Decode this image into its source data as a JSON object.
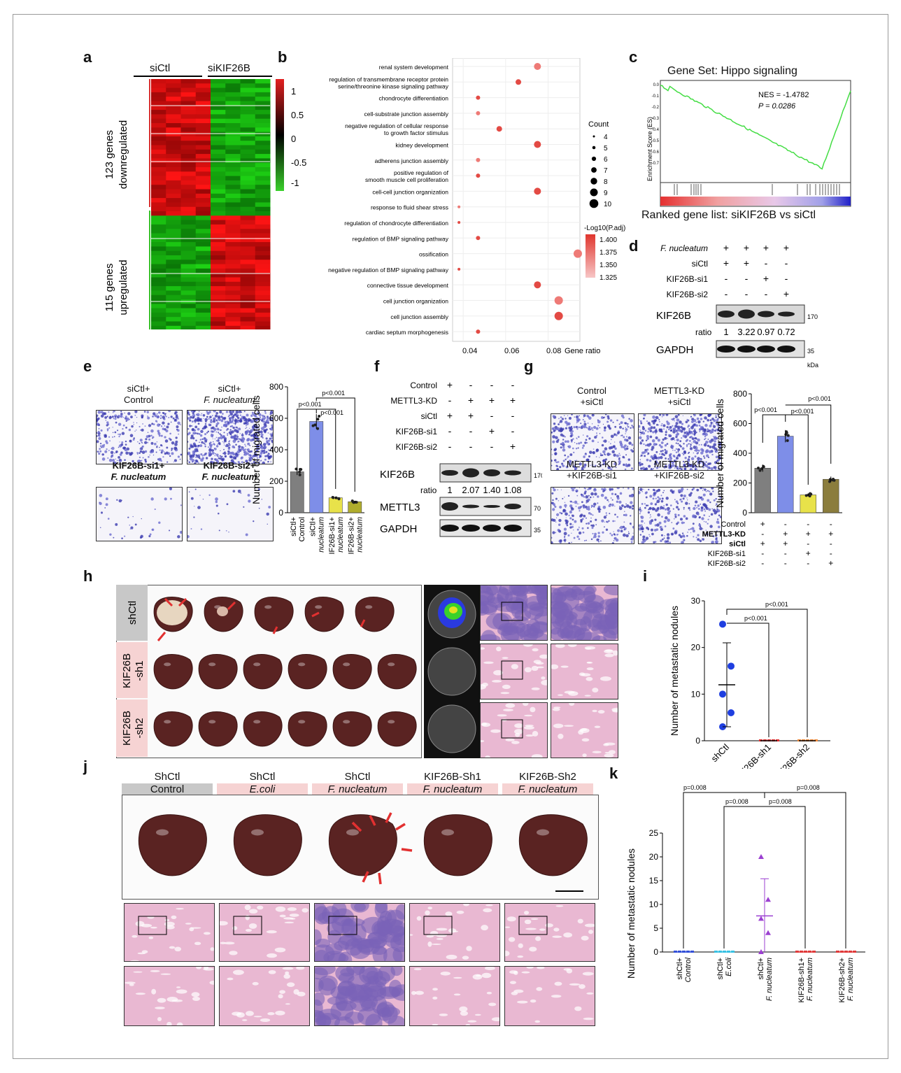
{
  "panels": {
    "a": "a",
    "b": "b",
    "c": "c",
    "d": "d",
    "e": "e",
    "f": "f",
    "g": "g",
    "h": "h",
    "i": "i",
    "j": "j",
    "k": "k"
  },
  "heatmap": {
    "col_labels": [
      "siCtl",
      "siKIF26B"
    ],
    "row_group_1": [
      "123 genes",
      "downregulated"
    ],
    "row_group_2": [
      "115 genes",
      "upregulated"
    ],
    "scale_ticks": [
      "1",
      "0.5",
      "0",
      "-0.5",
      "-1"
    ],
    "colors": {
      "high": "#e32020",
      "mid": "#000000",
      "low": "#39d12a"
    }
  },
  "go_dotplot": {
    "terms": [
      "renal system development",
      "regulation of transmembrane receptor protein",
      "serine/threonine kinase signaling pathway",
      "chondrocyte differentiation",
      "cell-substrate junction assembly",
      "negative regulation of cellular response",
      "to growth factor stimulus",
      "kidney development",
      "adherens junction assembly",
      "positive regulation of",
      "smooth muscle cell proliferation",
      "cell-cell junction organization",
      "response to fluid shear stress",
      "regulation of chondrocyte differentiation",
      "regulation of BMP signaling pathway",
      "ossification",
      "negative regulation of BMP signaling pathway",
      "connective tissue development",
      "cell junction organization",
      "cell junction assembly",
      "cardiac septum morphogenesis"
    ],
    "x_ticks": [
      "0.04",
      "0.06",
      "0.08"
    ],
    "x_label": "Gene ratio",
    "count_title": "Count",
    "count_values": [
      "4",
      "5",
      "6",
      "7",
      "8",
      "9",
      "10"
    ],
    "padj_title": "-Log10(P.adj)",
    "padj_ticks": [
      "1.400",
      "1.375",
      "1.350",
      "1.325"
    ]
  },
  "gsea": {
    "title": "Gene Set: Hippo signaling",
    "nes": "NES = -1.4782",
    "p": "P = 0.0286",
    "y_label": "Enrichment Score (ES)",
    "y_ticks": [
      "0.0",
      "-0.1",
      "-0.2",
      "-0.3",
      "-0.4",
      "-0.5",
      "-0.6",
      "-0.7"
    ],
    "ranked_label": "Ranked gene list: siKIF26B vs siCtl"
  },
  "western_d": {
    "rows": [
      {
        "label": "F. nucleatum",
        "marks": [
          "+",
          "+",
          "+",
          "+"
        ]
      },
      {
        "label": "siCtl",
        "marks": [
          "+",
          "+",
          "-",
          "-"
        ]
      },
      {
        "label": "KIF26B-si1",
        "marks": [
          "-",
          "-",
          "+",
          "-"
        ]
      },
      {
        "label": "KIF26B-si2",
        "marks": [
          "-",
          "-",
          "-",
          "+"
        ]
      }
    ],
    "band1": "KIF26B",
    "band2": "GAPDH",
    "ratio_label": "ratio",
    "ratios": [
      "1",
      "3.22",
      "0.97",
      "0.72"
    ],
    "mw1": "170",
    "mw2": "35",
    "kda": "kDa"
  },
  "migration_e": {
    "images": [
      [
        "siCtl+",
        "Control"
      ],
      [
        "siCtl+",
        "F. nucleatum"
      ],
      [
        "KIF26B-si1+",
        "F. nucleatum"
      ],
      [
        "KIF26B-si2+",
        "F. nucleatum"
      ]
    ],
    "y_label": "Number of migrated cells",
    "y_ticks": [
      "0",
      "200",
      "400",
      "600",
      "800"
    ],
    "p_labels": [
      "p<0.001",
      "p<0.001",
      "p<0.001"
    ],
    "categories": [
      [
        "siCtl+",
        "Control"
      ],
      [
        "siCtl+",
        "F. nucleatum"
      ],
      [
        "KIF26B-si1+",
        "F. nucleatum"
      ],
      [
        "KIF26B-si2+",
        "F. nucleatum"
      ]
    ]
  },
  "western_f": {
    "rows": [
      {
        "label": "Control",
        "marks": [
          "+",
          "-",
          "-",
          "-"
        ]
      },
      {
        "label": "METTL3-KD",
        "marks": [
          "-",
          "+",
          "+",
          "+"
        ]
      },
      {
        "label": "siCtl",
        "marks": [
          "+",
          "+",
          "-",
          "-"
        ]
      },
      {
        "label": "KIF26B-si1",
        "marks": [
          "-",
          "-",
          "+",
          "-"
        ]
      },
      {
        "label": "KIF26B-si2",
        "marks": [
          "-",
          "-",
          "-",
          "+"
        ]
      }
    ],
    "band1": "KIF26B",
    "band2": "METTL3",
    "band3": "GAPDH",
    "ratio_label": "ratio",
    "ratios": [
      "1",
      "2.07",
      "1.40",
      "1.08"
    ],
    "mw1": "170",
    "mw2": "70",
    "mw3": "35",
    "kda": "kDa"
  },
  "migration_g": {
    "images": [
      [
        "Control",
        "+siCtl"
      ],
      [
        "METTL3-KD",
        "+siCtl"
      ],
      [
        "METTL3-KD",
        "+KIF26B-si1"
      ],
      [
        "METTL3-KD",
        "+KIF26B-si2"
      ]
    ],
    "y_label": "Number of migrated cells",
    "y_ticks": [
      "0",
      "200",
      "400",
      "600",
      "800"
    ],
    "p_labels": [
      "p<0.001",
      "p<0.001",
      "p<0.001"
    ],
    "rows": [
      {
        "label": "Control",
        "marks": [
          "+",
          "-",
          "-",
          "-"
        ]
      },
      {
        "label": "METTL3-KD",
        "marks": [
          "-",
          "+",
          "+",
          "+"
        ]
      },
      {
        "label": "siCtl",
        "marks": [
          "+",
          "+",
          "-",
          "-"
        ]
      },
      {
        "label": "KIF26B-si1",
        "marks": [
          "-",
          "-",
          "+",
          "-"
        ]
      },
      {
        "label": "KIF26B-si2",
        "marks": [
          "-",
          "-",
          "-",
          "+"
        ]
      }
    ]
  },
  "liver_h": {
    "rows": [
      "shCtl",
      "KIF26B -sh1",
      "KIF26B -sh2"
    ]
  },
  "nodules_i": {
    "y_label": "Number of metastatic nodules",
    "y_ticks": [
      "0",
      "10",
      "20",
      "30"
    ],
    "categories": [
      "shCtl",
      "KIF26B-sh1",
      "KIF26B-sh2"
    ],
    "p_labels": [
      "p<0.001",
      "p<0.001"
    ]
  },
  "liver_j": {
    "groups": [
      [
        "ShCtl",
        "Control"
      ],
      [
        "ShCtl",
        "E.coli"
      ],
      [
        "ShCtl",
        "F. nucleatum"
      ],
      [
        "KIF26B-Sh1",
        "F. nucleatum"
      ],
      [
        "KIF26B-Sh2",
        "F. nucleatum"
      ]
    ],
    "colors": {
      "grey": "#c8c8c8",
      "pink": "#f6d3d3"
    }
  },
  "nodules_k": {
    "y_label": "Number of metastatic nodules",
    "y_ticks": [
      "0",
      "5",
      "10",
      "15",
      "20",
      "25"
    ],
    "categories": [
      [
        "shCtl+",
        "Control"
      ],
      [
        "shCtl+",
        "E.coli"
      ],
      [
        "shCtl+",
        "F. nucleatum"
      ],
      [
        "KIF26B-sh1+",
        "F. nucleatum"
      ],
      [
        "KIF26B-sh2+",
        "F. nucleatum"
      ]
    ],
    "p_labels": [
      "p=0.008",
      "p=0.008",
      "p=0.008",
      "p=0.008"
    ]
  },
  "chart_data": [
    {
      "type": "bar",
      "id": "e",
      "categories": [
        "siCtl+ Control",
        "siCtl+ F. nucleatum",
        "KIF26B-si1+ F. nucleatum",
        "KIF26B-si2+ F. nucleatum"
      ],
      "values": [
        260,
        580,
        95,
        70
      ],
      "ylim": [
        0,
        800
      ],
      "ylabel": "Number of migrated cells",
      "colors": [
        "#7f7f7f",
        "#7e8ee8",
        "#e8e24a",
        "#b0ad2d"
      ]
    },
    {
      "type": "bar",
      "id": "g",
      "categories": [
        "Control+siCtl",
        "METTL3-KD+siCtl",
        "METTL3-KD+KIF26B-si1",
        "METTL3-KD+KIF26B-si2"
      ],
      "values": [
        300,
        515,
        120,
        225
      ],
      "ylim": [
        0,
        800
      ],
      "ylabel": "Number of migrated cells",
      "colors": [
        "#7f7f7f",
        "#7e8ee8",
        "#e8e24a",
        "#8b7d3d"
      ]
    },
    {
      "type": "scatter",
      "id": "i",
      "categories": [
        "shCtl",
        "KIF26B-sh1",
        "KIF26B-sh2"
      ],
      "series": [
        {
          "values": [
            [
              25,
              16,
              10,
              6,
              3
            ],
            [
              0,
              0,
              0,
              0,
              0
            ],
            [
              0,
              0,
              0,
              0,
              0
            ]
          ]
        }
      ],
      "mean": [
        12,
        0,
        0
      ],
      "sd": [
        9,
        0,
        0
      ],
      "ylim": [
        0,
        30
      ],
      "ylabel": "Number of metastatic nodules",
      "colors": [
        "#1f3fe0",
        "#e23030",
        "#f08a3a"
      ]
    },
    {
      "type": "scatter",
      "id": "k",
      "categories": [
        "shCtl+ Control",
        "shCtl+ E.coli",
        "shCtl+ F. nucleatum",
        "KIF26B-sh1+ F. nucleatum",
        "KIF26B-sh2+ F. nucleatum"
      ],
      "series": [
        {
          "values": [
            [
              0,
              0,
              0,
              0,
              0
            ],
            [
              0,
              0,
              0,
              0,
              0
            ],
            [
              20,
              11,
              7,
              4,
              0
            ],
            [
              0,
              0,
              0,
              0,
              0
            ],
            [
              0,
              0,
              0,
              0,
              0
            ]
          ]
        }
      ],
      "mean": [
        0,
        0,
        7.6,
        0,
        0
      ],
      "sd": [
        0,
        0,
        7.8,
        0,
        0
      ],
      "ylim": [
        0,
        25
      ],
      "ylabel": "Number of metastatic nodules",
      "colors": [
        "#3350d8",
        "#39c1e3",
        "#9b3fd1",
        "#e03a3a",
        "#e03a3a"
      ]
    }
  ]
}
